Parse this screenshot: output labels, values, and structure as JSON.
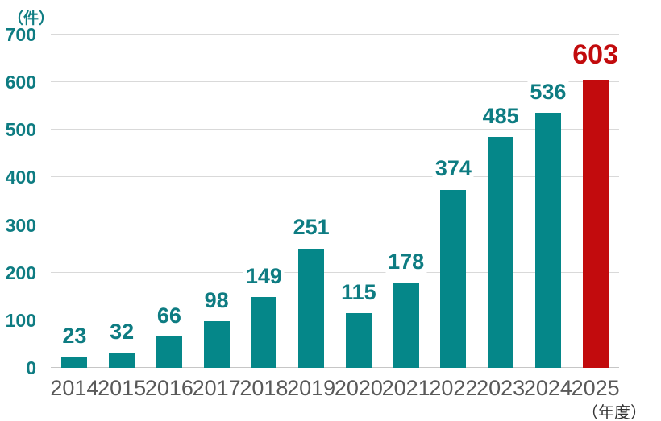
{
  "chart": {
    "y_unit_label": "（件）",
    "x_unit_label": "（年度）"
  },
  "chart_data": {
    "type": "bar",
    "title": "",
    "categories": [
      "2014",
      "2015",
      "2016",
      "2017",
      "2018",
      "2019",
      "2020",
      "2021",
      "2022",
      "2023",
      "2024",
      "2025"
    ],
    "values": [
      23,
      32,
      66,
      98,
      149,
      251,
      115,
      178,
      374,
      485,
      536,
      603
    ],
    "xlabel": "年度",
    "ylabel": "件",
    "ylim": [
      0,
      700
    ],
    "yticks": [
      0,
      100,
      200,
      300,
      400,
      500,
      600,
      700
    ],
    "grid": true,
    "legend": "none",
    "highlight_index": 11,
    "colors": {
      "bar": "#058789",
      "highlight_bar": "#C20B0D",
      "value_label": "#0E7C82",
      "highlight_value_label": "#C20B0D",
      "axis_tick_label": "#0E7C82",
      "category_label": "#595959",
      "gridline": "#D9D9D9"
    }
  }
}
